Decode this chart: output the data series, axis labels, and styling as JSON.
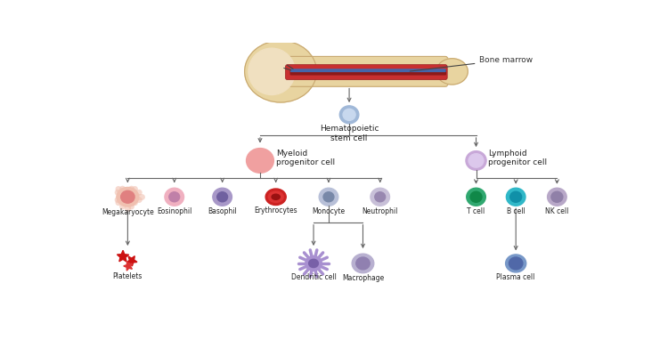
{
  "background_color": "#ffffff",
  "line_color": "#666666",
  "bone_marrow_label": "Bone marrow",
  "stem_cell_label": "Hematopoietic\nstem cell",
  "myeloid_label": "Myeloid\nprogenitor cell",
  "lymphoid_label": "Lymphoid\nprogenitor cell",
  "bone_color": "#e8d4a0",
  "bone_outline": "#c8a870",
  "bone_texture": "#d4b888",
  "marrow_red": "#c83030",
  "marrow_dark": "#8b1a1a",
  "marrow_blue": "#4466aa",
  "stem_cell_outer": "#a0b8d8",
  "stem_cell_inner": "#c8d8ee",
  "myeloid_outer": "#f0a0a0",
  "lymphoid_outer": "#c8a8d8",
  "lymphoid_inner": "#dcc8ec",
  "meg_outer": "#f0c0b0",
  "meg_inner": "#e08080",
  "eos_outer": "#f0b0c0",
  "eos_inner": "#c080a8",
  "bas_outer": "#a898c8",
  "bas_inner": "#7060a0",
  "ery_outer": "#cc2222",
  "ery_inner": "#991111",
  "mon_outer": "#b8c0d8",
  "mon_inner": "#7888a8",
  "neu_outer": "#c8c0d8",
  "neu_inner": "#9888b0",
  "tc_outer": "#30a870",
  "tc_inner": "#108848",
  "bc_outer": "#30b8c8",
  "bc_inner": "#1090a8",
  "nk_outer": "#b8a8c8",
  "nk_inner": "#9080a8",
  "platelet_color": "#cc1111",
  "den_outer": "#a890d0",
  "den_inner": "#7860a8",
  "mac_outer": "#b8b0d0",
  "mac_inner": "#9080b0",
  "plasma_outer": "#7898c8",
  "plasma_inner": "#5068a8"
}
